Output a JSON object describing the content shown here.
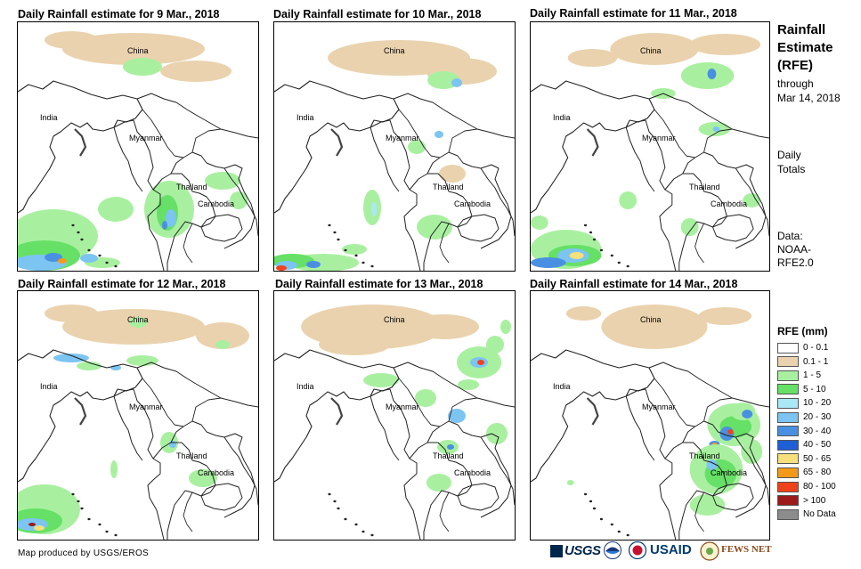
{
  "panels": [
    {
      "title": "Daily Rainfall estimate for 9 Mar., 2018"
    },
    {
      "title": "Daily Rainfall estimate for 10 Mar., 2018"
    },
    {
      "title": "Daily Rainfall estimate for 11 Mar., 2018"
    },
    {
      "title": "Daily Rainfall estimate for 12 Mar., 2018"
    },
    {
      "title": "Daily Rainfall estimate for 13 Mar., 2018"
    },
    {
      "title": "Daily Rainfall estimate for 14 Mar., 2018"
    }
  ],
  "countries": {
    "china": "China",
    "india": "India",
    "myanmar": "Myanmar",
    "thailand": "Thailand",
    "cambodia": "Cambodia"
  },
  "side": {
    "title_line1": "Rainfall",
    "title_line2": "Estimate",
    "title_line3": "(RFE)",
    "through": "through",
    "through_date": "Mar 14, 2018",
    "daily1": "Daily",
    "daily2": "Totals",
    "data1": "Data:",
    "data2": "NOAA-",
    "data3": "RFE2.0"
  },
  "legend": {
    "title": "RFE (mm)",
    "items": [
      {
        "label": "0 - 0.1",
        "color": "#ffffff"
      },
      {
        "label": "0.1 - 1",
        "color": "#ead2ae"
      },
      {
        "label": "1 - 5",
        "color": "#a8f0a0"
      },
      {
        "label": "5 - 10",
        "color": "#66e066"
      },
      {
        "label": "10 - 20",
        "color": "#aae8f5"
      },
      {
        "label": "20 - 30",
        "color": "#7cc4f2"
      },
      {
        "label": "30 - 40",
        "color": "#4a90e2"
      },
      {
        "label": "40 - 50",
        "color": "#1f5fd6"
      },
      {
        "label": "50 - 65",
        "color": "#f5e07c"
      },
      {
        "label": "65 - 80",
        "color": "#f49a1a"
      },
      {
        "label": "80 - 100",
        "color": "#f0421a"
      },
      {
        "label": "> 100",
        "color": "#9c1a1a"
      },
      {
        "label": "No Data",
        "color": "#8c8c8c"
      }
    ]
  },
  "credit": "Map produced by USGS/EROS",
  "logos": {
    "usgs": "USGS",
    "usaid": "USAID",
    "fewsnet": "FEWS NET"
  }
}
